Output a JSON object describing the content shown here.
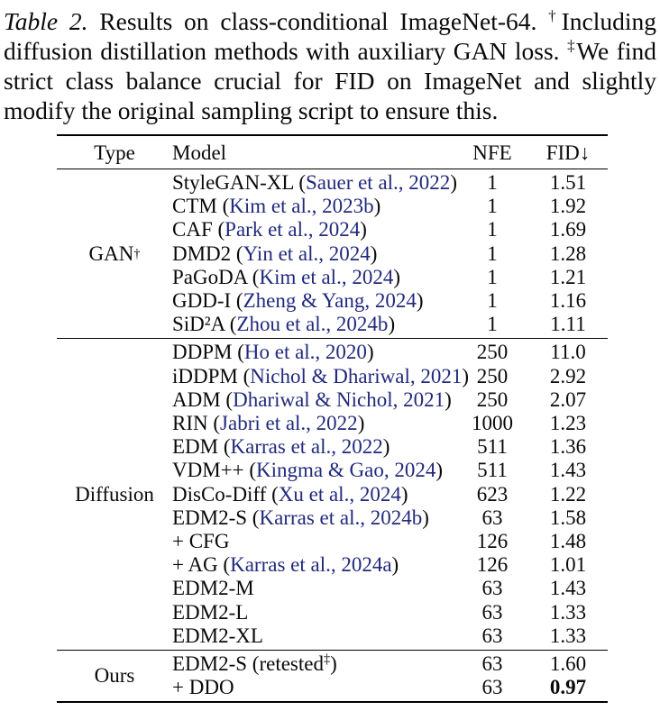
{
  "colors": {
    "citation": "#212a7c",
    "text": "#0a0a0a",
    "rule": "#000000"
  },
  "caption": {
    "segments": [
      {
        "t": "Table 2.",
        "style": "italic"
      },
      {
        "t": " Results on class-conditional ImageNet-64. ",
        "style": "normal"
      },
      {
        "t": "†",
        "style": "sup"
      },
      {
        "t": "Including diffusion distillation methods with auxiliary GAN loss. ",
        "style": "normal"
      },
      {
        "t": "‡",
        "style": "sup"
      },
      {
        "t": "We find strict class balance crucial for FID on ImageNet and slightly modify the original sampling script to ensure this.",
        "style": "normal"
      }
    ]
  },
  "table": {
    "columns": [
      "Type",
      "Model",
      "NFE",
      "FID↓"
    ],
    "sections": [
      {
        "type": "GAN",
        "type_sup": "†",
        "rows": [
          {
            "model": "StyleGAN-XL (",
            "cite": "Sauer et al., 2022",
            "close": ")",
            "nfe": "1",
            "fid": "1.51"
          },
          {
            "model": "CTM (",
            "cite": "Kim et al., 2023b",
            "close": ")",
            "nfe": "1",
            "fid": "1.92"
          },
          {
            "model": "CAF (",
            "cite": "Park et al., 2024",
            "close": ")",
            "nfe": "1",
            "fid": "1.69"
          },
          {
            "model": "DMD2 (",
            "cite": "Yin et al., 2024",
            "close": ")",
            "nfe": "1",
            "fid": "1.28"
          },
          {
            "model": "PaGoDA (",
            "cite": "Kim et al., 2024",
            "close": ")",
            "nfe": "1",
            "fid": "1.21"
          },
          {
            "model": "GDD-I (",
            "cite": "Zheng & Yang, 2024",
            "close": ")",
            "nfe": "1",
            "fid": "1.16"
          },
          {
            "model": "SiD²A (",
            "cite": "Zhou et al., 2024b",
            "close": ")",
            "nfe": "1",
            "fid": "1.11"
          }
        ]
      },
      {
        "type": "Diffusion",
        "type_sup": "",
        "rows": [
          {
            "model": "DDPM (",
            "cite": "Ho et al., 2020",
            "close": ")",
            "nfe": "250",
            "fid": "11.0"
          },
          {
            "model": "iDDPM (",
            "cite": "Nichol & Dhariwal, 2021",
            "close": ")",
            "nfe": "250",
            "fid": "2.92"
          },
          {
            "model": "ADM (",
            "cite": "Dhariwal & Nichol, 2021",
            "close": ")",
            "nfe": "250",
            "fid": "2.07"
          },
          {
            "model": "RIN (",
            "cite": "Jabri et al., 2022",
            "close": ")",
            "nfe": "1000",
            "fid": "1.23"
          },
          {
            "model": "EDM (",
            "cite": "Karras et al., 2022",
            "close": ")",
            "nfe": "511",
            "fid": "1.36"
          },
          {
            "model": "VDM++ (",
            "cite": "Kingma & Gao, 2024",
            "close": ")",
            "nfe": "511",
            "fid": "1.43"
          },
          {
            "model": "DisCo-Diff (",
            "cite": "Xu et al., 2024",
            "close": ")",
            "nfe": "623",
            "fid": "1.22"
          },
          {
            "model": "EDM2-S (",
            "cite": "Karras et al., 2024b",
            "close": ")",
            "nfe": "63",
            "fid": "1.58"
          },
          {
            "model": "+ CFG",
            "cite": "",
            "close": "",
            "nfe": "126",
            "fid": "1.48"
          },
          {
            "model": "+ AG (",
            "cite": "Karras et al., 2024a",
            "close": ")",
            "nfe": "126",
            "fid": "1.01"
          },
          {
            "model": "EDM2-M",
            "cite": "",
            "close": "",
            "nfe": "63",
            "fid": "1.43"
          },
          {
            "model": "EDM2-L",
            "cite": "",
            "close": "",
            "nfe": "63",
            "fid": "1.33"
          },
          {
            "model": "EDM2-XL",
            "cite": "",
            "close": "",
            "nfe": "63",
            "fid": "1.33"
          }
        ]
      },
      {
        "type": "Ours",
        "type_sup": "",
        "rows": [
          {
            "model": "EDM2-S (retested",
            "model_sup": "‡",
            "close": ")",
            "cite": "",
            "nfe": "63",
            "fid": "1.60"
          },
          {
            "model": "+ DDO",
            "cite": "",
            "close": "",
            "nfe": "63",
            "fid": "0.97",
            "fid_bold": true
          }
        ]
      }
    ]
  }
}
